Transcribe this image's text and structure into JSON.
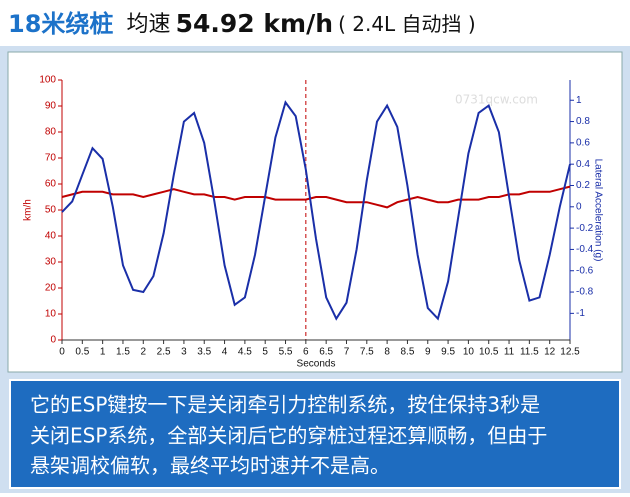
{
  "header": {
    "title": "18米绕桩",
    "label": "均速",
    "speed": "54.92 km/h",
    "spec": "( 2.4L 自动挡 )"
  },
  "chart_data": {
    "type": "line",
    "x": [
      0,
      0.25,
      0.5,
      0.75,
      1,
      1.25,
      1.5,
      1.75,
      2,
      2.25,
      2.5,
      2.75,
      3,
      3.25,
      3.5,
      3.75,
      4,
      4.25,
      4.5,
      4.75,
      5,
      5.25,
      5.5,
      5.75,
      6,
      6.25,
      6.5,
      6.75,
      7,
      7.25,
      7.5,
      7.75,
      8,
      8.25,
      8.5,
      8.75,
      9,
      9.25,
      9.5,
      9.75,
      10,
      10.25,
      10.5,
      10.75,
      11,
      11.25,
      11.5,
      11.75,
      12,
      12.25,
      12.5
    ],
    "series": [
      {
        "color": "#c00000",
        "values": [
          55,
          56,
          57,
          57,
          57,
          56,
          56,
          56,
          55,
          56,
          57,
          58,
          57,
          56,
          56,
          55,
          55,
          54,
          55,
          55,
          55,
          54,
          54,
          54,
          54,
          55,
          55,
          54,
          53,
          53,
          53,
          52,
          51,
          53,
          54,
          55,
          54,
          53,
          53,
          54,
          54,
          54,
          55,
          55,
          56,
          56,
          57,
          57,
          57,
          58,
          59
        ]
      },
      {
        "color": "#1a2fa8",
        "axis": "y2",
        "values": [
          -0.05,
          0.05,
          0.3,
          0.55,
          0.45,
          0,
          -0.55,
          -0.78,
          -0.8,
          -0.65,
          -0.25,
          0.3,
          0.8,
          0.88,
          0.6,
          0.05,
          -0.55,
          -0.92,
          -0.85,
          -0.45,
          0.1,
          0.65,
          0.98,
          0.85,
          0.35,
          -0.3,
          -0.85,
          -1.05,
          -0.9,
          -0.4,
          0.25,
          0.8,
          0.95,
          0.75,
          0.2,
          -0.45,
          -0.95,
          -1.05,
          -0.7,
          -0.1,
          0.5,
          0.88,
          0.95,
          0.7,
          0.1,
          -0.5,
          -0.88,
          -0.85,
          -0.45,
          0,
          0.4
        ]
      }
    ],
    "xlabel": "Seconds",
    "ylabel": "km/h",
    "y2label": "Lateral Acceleration (g)",
    "xlim": [
      0,
      12.5
    ],
    "xticks": [
      0,
      0.5,
      1,
      1.5,
      2,
      2.5,
      3,
      3.5,
      4,
      4.5,
      5,
      5.5,
      6,
      6.5,
      7,
      7.5,
      8,
      8.5,
      9,
      9.5,
      10,
      10.5,
      11,
      11.5,
      12,
      12.5
    ],
    "ylim": [
      0,
      100
    ],
    "yticks": [
      0,
      10,
      20,
      30,
      40,
      50,
      60,
      70,
      80,
      90,
      100
    ],
    "y2lim": [
      -1.25,
      1.19
    ],
    "y2ticks": [
      -1,
      -0.8,
      -0.6,
      -0.4,
      -0.2,
      0,
      0.2,
      0.4,
      0.6,
      0.8,
      1
    ],
    "cursor_x": 6,
    "watermark": "0731qcw.com"
  },
  "caption": [
    "它的ESP键按一下是关闭牵引力控制系统，按住保持3秒是",
    "关闭ESP系统，全部关闭后它的穿桩过程还算顺畅，但由于",
    "悬架调校偏软，最终平均时速并不是高。"
  ]
}
